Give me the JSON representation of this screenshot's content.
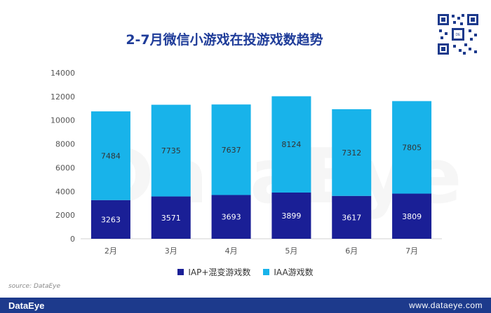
{
  "chart_data": {
    "type": "bar",
    "stacked": true,
    "title": "2-7月微信小游戏在投游戏数趋势",
    "categories": [
      "2月",
      "3月",
      "4月",
      "5月",
      "6月",
      "7月"
    ],
    "series": [
      {
        "name": "IAP+混变游戏数",
        "values": [
          3263,
          3571,
          3693,
          3899,
          3617,
          3809
        ],
        "color": "#1a1f96"
      },
      {
        "name": "IAA游戏数",
        "values": [
          7484,
          7735,
          7637,
          8124,
          7312,
          7805
        ],
        "color": "#18b3ea"
      }
    ],
    "yticks": [
      "0",
      "2000",
      "4000",
      "6000",
      "8000",
      "10000",
      "12000",
      "14000"
    ],
    "ylim": [
      0,
      14000
    ],
    "grid": false,
    "legend": "bottom"
  },
  "watermark": "DataEye",
  "source": "source: DataEye",
  "footer": {
    "brand": "DataEye",
    "url": "www.dataeye.com"
  }
}
